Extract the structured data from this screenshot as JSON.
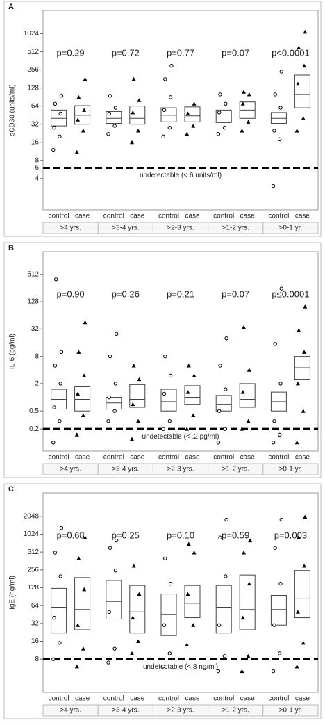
{
  "chart_data": [
    {
      "type": "box",
      "panel_label": "A",
      "y_label": "sCD30 (units/ml)",
      "log_scale": true,
      "ylim": [
        1.2,
        2500
      ],
      "yticks": [
        4,
        6,
        8,
        16,
        32,
        64,
        128,
        256,
        512,
        1024
      ],
      "threshold": {
        "value": 6,
        "label": "undetectable (< 6 units/ml)"
      },
      "periods": [
        ">4 yrs.",
        ">3-4 yrs.",
        ">2-3 yrs.",
        ">1-2 yrs.",
        ">0-1 yr."
      ],
      "p_values": [
        "p=0.29",
        "p=0.72",
        "p=0.77",
        "p=0.07",
        "p<0.0001"
      ],
      "groups": [
        "control",
        "case",
        "control",
        "case",
        "control",
        "case",
        "control",
        "case",
        "control",
        "case"
      ],
      "markers": [
        "circle",
        "triangle"
      ],
      "q1": [
        30,
        32,
        33,
        32,
        35,
        35,
        34,
        40,
        33,
        60
      ],
      "median": [
        40,
        45,
        40,
        40,
        45,
        44,
        42,
        55,
        40,
        100
      ],
      "q3": [
        55,
        65,
        52,
        64,
        60,
        62,
        55,
        75,
        50,
        210
      ],
      "points": [
        [
          12,
          20,
          28,
          48,
          70,
          95
        ],
        [
          11,
          25,
          38,
          55,
          90,
          180
        ],
        [
          22,
          30,
          48,
          60,
          95
        ],
        [
          16,
          25,
          50,
          80,
          180
        ],
        [
          20,
          28,
          55,
          90,
          180,
          300
        ],
        [
          22,
          30,
          48,
          70
        ],
        [
          22,
          28,
          50,
          70,
          100
        ],
        [
          25,
          35,
          70,
          100,
          110
        ],
        [
          3,
          18,
          25,
          60,
          100,
          240
        ],
        [
          25,
          40,
          150,
          300,
          600,
          1100
        ]
      ]
    },
    {
      "type": "box",
      "panel_label": "B",
      "y_label": "IL-6 (pg/ml)",
      "log_scale": true,
      "ylim": [
        0.065,
        1630
      ],
      "yticks": [
        0.2,
        0.5,
        2,
        8,
        32,
        128,
        512
      ],
      "threshold": {
        "value": 0.2,
        "label": "undetectable (< .2 pg/ml)"
      },
      "periods": [
        ">4 yrs.",
        ">3-4 yrs.",
        ">2-3 yrs.",
        ">1-2 yrs.",
        ">0-1 yr."
      ],
      "p_values": [
        "p=0.90",
        "p=0.26",
        "p=0.21",
        "p=0.07",
        "p≤0.0001"
      ],
      "groups": [
        "control",
        "case",
        "control",
        "case",
        "control",
        "case",
        "control",
        "case",
        "control",
        "case"
      ],
      "markers": [
        "circle",
        "triangle"
      ],
      "q1": [
        0.55,
        0.5,
        0.55,
        0.6,
        0.5,
        0.7,
        0.5,
        0.6,
        0.5,
        2.5
      ],
      "median": [
        0.9,
        0.9,
        0.75,
        0.9,
        0.8,
        1.0,
        0.7,
        0.9,
        0.8,
        4.5
      ],
      "q3": [
        1.5,
        1.7,
        1.0,
        1.9,
        1.5,
        1.8,
        1.1,
        2.0,
        1.3,
        8
      ],
      "points": [
        [
          0.1,
          0.3,
          0.6,
          2,
          5,
          10,
          400
        ],
        [
          0.15,
          0.4,
          1.2,
          3,
          10,
          45
        ],
        [
          0.3,
          0.5,
          1,
          2,
          8,
          25
        ],
        [
          0.12,
          0.3,
          0.7,
          2.5,
          5
        ],
        [
          0.2,
          0.3,
          1.2,
          3,
          8
        ],
        [
          0.2,
          0.4,
          1.3,
          3,
          5
        ],
        [
          0.1,
          0.2,
          0.5,
          1.5,
          5,
          20
        ],
        [
          0.2,
          0.3,
          1.3,
          4,
          35
        ],
        [
          0.1,
          0.15,
          0.3,
          2,
          15,
          250
        ],
        [
          0.1,
          0.5,
          2,
          10,
          30,
          100
        ]
      ]
    },
    {
      "type": "box",
      "panel_label": "C",
      "y_label": "IgE (ng/ml)",
      "log_scale": true,
      "ylim": [
        2.2,
        5100
      ],
      "yticks": [
        8,
        16,
        32,
        64,
        128,
        256,
        512,
        1024,
        2048
      ],
      "threshold": {
        "value": 8,
        "label": "undetectable (< 8 ng/ml)"
      },
      "periods": [
        ">4 yrs.",
        ">3-4 yrs.",
        ">2-3 yrs.",
        ">1-2 yrs.",
        ">0-1 yr."
      ],
      "p_values": [
        "p=0.68",
        "p=0.25",
        "p=0.10",
        "p=0.59",
        "p=0.003"
      ],
      "groups": [
        "control",
        "case",
        "control",
        "case",
        "control",
        "case",
        "control",
        "case",
        "control",
        "case"
      ],
      "markers": [
        "circle",
        "triangle"
      ],
      "q1": [
        22,
        25,
        38,
        22,
        20,
        40,
        22,
        25,
        30,
        40
      ],
      "median": [
        60,
        55,
        75,
        50,
        45,
        70,
        60,
        55,
        55,
        85
      ],
      "q3": [
        125,
        190,
        170,
        140,
        100,
        140,
        140,
        210,
        95,
        250
      ],
      "points": [
        [
          8,
          15,
          40,
          200,
          500,
          1300
        ],
        [
          6,
          12,
          30,
          120,
          400,
          900
        ],
        [
          7,
          12,
          50,
          250,
          600,
          800
        ],
        [
          10,
          16,
          40,
          100,
          300
        ],
        [
          6,
          10,
          30,
          150,
          400
        ],
        [
          14,
          30,
          100,
          500,
          700
        ],
        [
          5,
          9,
          30,
          200,
          900,
          1800
        ],
        [
          5,
          9,
          40,
          150,
          500,
          800
        ],
        [
          5,
          10,
          30,
          150,
          600,
          1800
        ],
        [
          6,
          15,
          50,
          300,
          900,
          2000
        ]
      ]
    }
  ]
}
